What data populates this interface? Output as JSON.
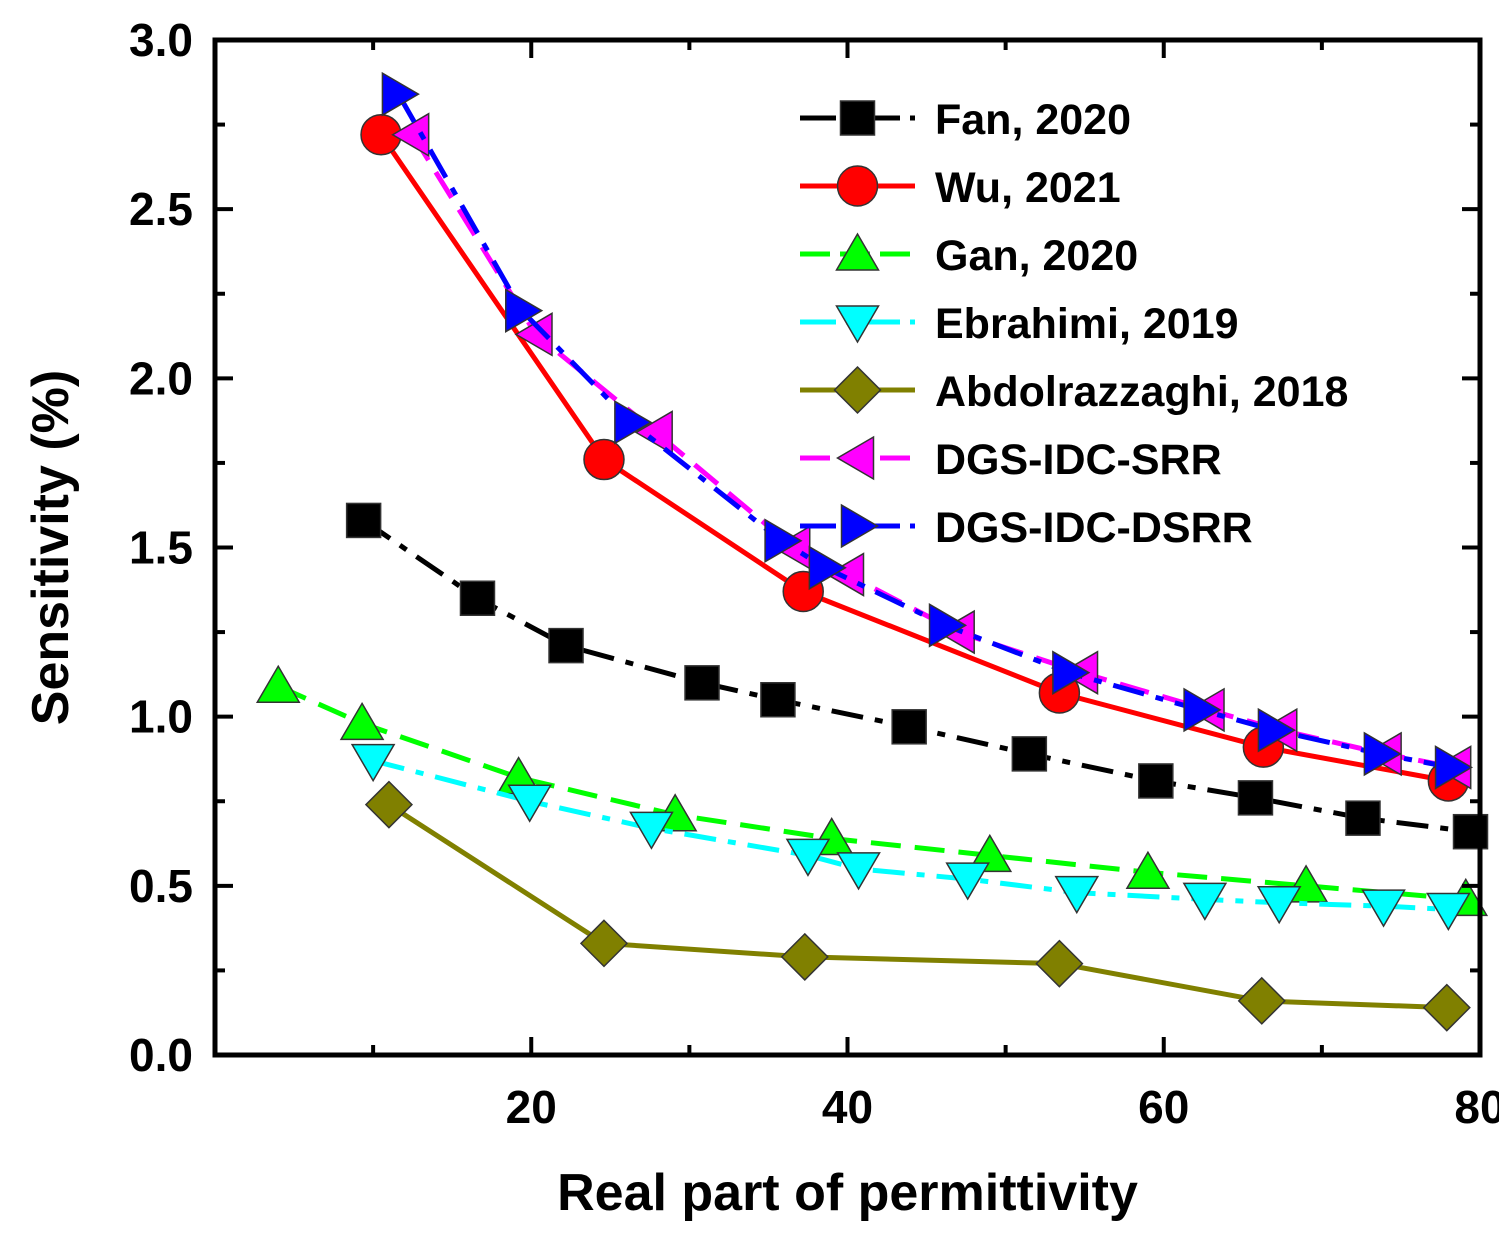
{
  "chart_data": {
    "type": "line",
    "xlabel": "Real part of permittivity",
    "ylabel": "Sensitivity (%)",
    "xlim": [
      0,
      80
    ],
    "ylim": [
      0.0,
      3.0
    ],
    "x_ticks": [
      20,
      40,
      60,
      80
    ],
    "x_tick_labels": [
      "20",
      "40",
      "60",
      "80"
    ],
    "y_ticks": [
      0.0,
      0.5,
      1.0,
      1.5,
      2.0,
      2.5,
      3.0
    ],
    "y_tick_labels": [
      "0.0",
      "0.5",
      "1.0",
      "1.5",
      "2.0",
      "2.5",
      "3.0"
    ],
    "legend_position": "top-right",
    "grid": false,
    "series": [
      {
        "name": "Fan, 2020",
        "color": "#000000",
        "marker": "square",
        "line": "dashdot",
        "points": [
          [
            9.4,
            1.58
          ],
          [
            16.6,
            1.35
          ],
          [
            22.2,
            1.21
          ],
          [
            30.8,
            1.1
          ],
          [
            35.6,
            1.05
          ],
          [
            43.9,
            0.97
          ],
          [
            51.5,
            0.89
          ],
          [
            59.5,
            0.81
          ],
          [
            65.8,
            0.76
          ],
          [
            72.6,
            0.7
          ],
          [
            79.4,
            0.66
          ]
        ]
      },
      {
        "name": "Wu, 2021",
        "color": "#ff0000",
        "marker": "circle",
        "line": "solid",
        "points": [
          [
            10.5,
            2.72
          ],
          [
            24.6,
            1.76
          ],
          [
            37.2,
            1.37
          ],
          [
            53.4,
            1.07
          ],
          [
            66.3,
            0.91
          ],
          [
            78.0,
            0.81
          ]
        ]
      },
      {
        "name": "Gan, 2020",
        "color": "#00ff00",
        "marker": "triangle-up",
        "line": "dashed",
        "points": [
          [
            4.0,
            1.09
          ],
          [
            9.3,
            0.98
          ],
          [
            19.2,
            0.82
          ],
          [
            29.1,
            0.71
          ],
          [
            39.0,
            0.64
          ],
          [
            49.0,
            0.59
          ],
          [
            59.0,
            0.54
          ],
          [
            69.0,
            0.5
          ],
          [
            79.1,
            0.46
          ]
        ]
      },
      {
        "name": "Ebrahimi, 2019",
        "color": "#00ffff",
        "marker": "triangle-down",
        "line": "dashdot",
        "points": [
          [
            10.0,
            0.87
          ],
          [
            19.9,
            0.75
          ],
          [
            27.6,
            0.67
          ],
          [
            37.5,
            0.59
          ],
          [
            40.7,
            0.55
          ],
          [
            47.6,
            0.52
          ],
          [
            54.5,
            0.48
          ],
          [
            62.6,
            0.46
          ],
          [
            67.3,
            0.45
          ],
          [
            73.9,
            0.44
          ],
          [
            78.0,
            0.43
          ]
        ]
      },
      {
        "name": "Abdolrazzaghi, 2018",
        "color": "#808000",
        "marker": "diamond",
        "line": "solid",
        "points": [
          [
            11.0,
            0.74
          ],
          [
            24.6,
            0.33
          ],
          [
            37.3,
            0.29
          ],
          [
            53.4,
            0.27
          ],
          [
            66.2,
            0.16
          ],
          [
            77.9,
            0.14
          ]
        ]
      },
      {
        "name": "DGS-IDC-SRR",
        "color": "#ff00ff",
        "marker": "triangle-left",
        "line": "dashed",
        "points": [
          [
            12.5,
            2.72
          ],
          [
            20.3,
            2.13
          ],
          [
            27.9,
            1.84
          ],
          [
            36.6,
            1.5
          ],
          [
            40.0,
            1.42
          ],
          [
            47.0,
            1.25
          ],
          [
            54.8,
            1.13
          ],
          [
            62.8,
            1.02
          ],
          [
            67.4,
            0.96
          ],
          [
            74.0,
            0.89
          ],
          [
            78.4,
            0.85
          ]
        ]
      },
      {
        "name": "DGS-IDC-DSRR",
        "color": "#0000ff",
        "marker": "triangle-right",
        "line": "dashdot",
        "points": [
          [
            11.6,
            2.84
          ],
          [
            19.4,
            2.2
          ],
          [
            26.3,
            1.87
          ],
          [
            35.8,
            1.52
          ],
          [
            38.6,
            1.44
          ],
          [
            46.2,
            1.27
          ],
          [
            54.0,
            1.13
          ],
          [
            62.3,
            1.02
          ],
          [
            67.0,
            0.96
          ],
          [
            73.7,
            0.89
          ],
          [
            78.2,
            0.85
          ]
        ]
      }
    ]
  }
}
